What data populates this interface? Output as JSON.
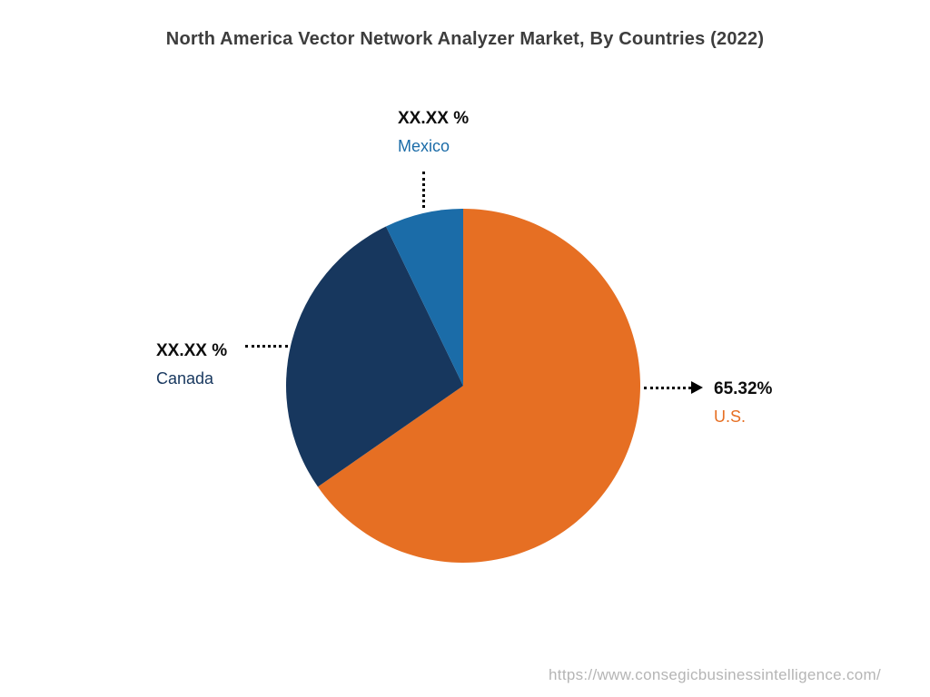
{
  "page": {
    "title": "North America Vector Network Analyzer Market, By Countries (2022)",
    "footer_url": "https://www.consegicbusinessintelligence.com/"
  },
  "chart_data": {
    "type": "pie",
    "title": "North America Vector Network Analyzer Market, By Countries (2022)",
    "start_angle_deg": 0,
    "direction": "clockwise",
    "legend": "none",
    "slices": [
      {
        "name": "U.S.",
        "value_pct": 65.32,
        "display_value": "65.32%",
        "color": "#E66F23",
        "label_color": "#E66F23"
      },
      {
        "name": "Canada",
        "value_pct": 27.5,
        "display_value": "XX.XX %",
        "color": "#17375E",
        "label_color": "#17375E"
      },
      {
        "name": "Mexico",
        "value_pct": 7.18,
        "display_value": "XX.XX %",
        "color": "#1B6CA8",
        "label_color": "#1B6CA8"
      }
    ]
  }
}
